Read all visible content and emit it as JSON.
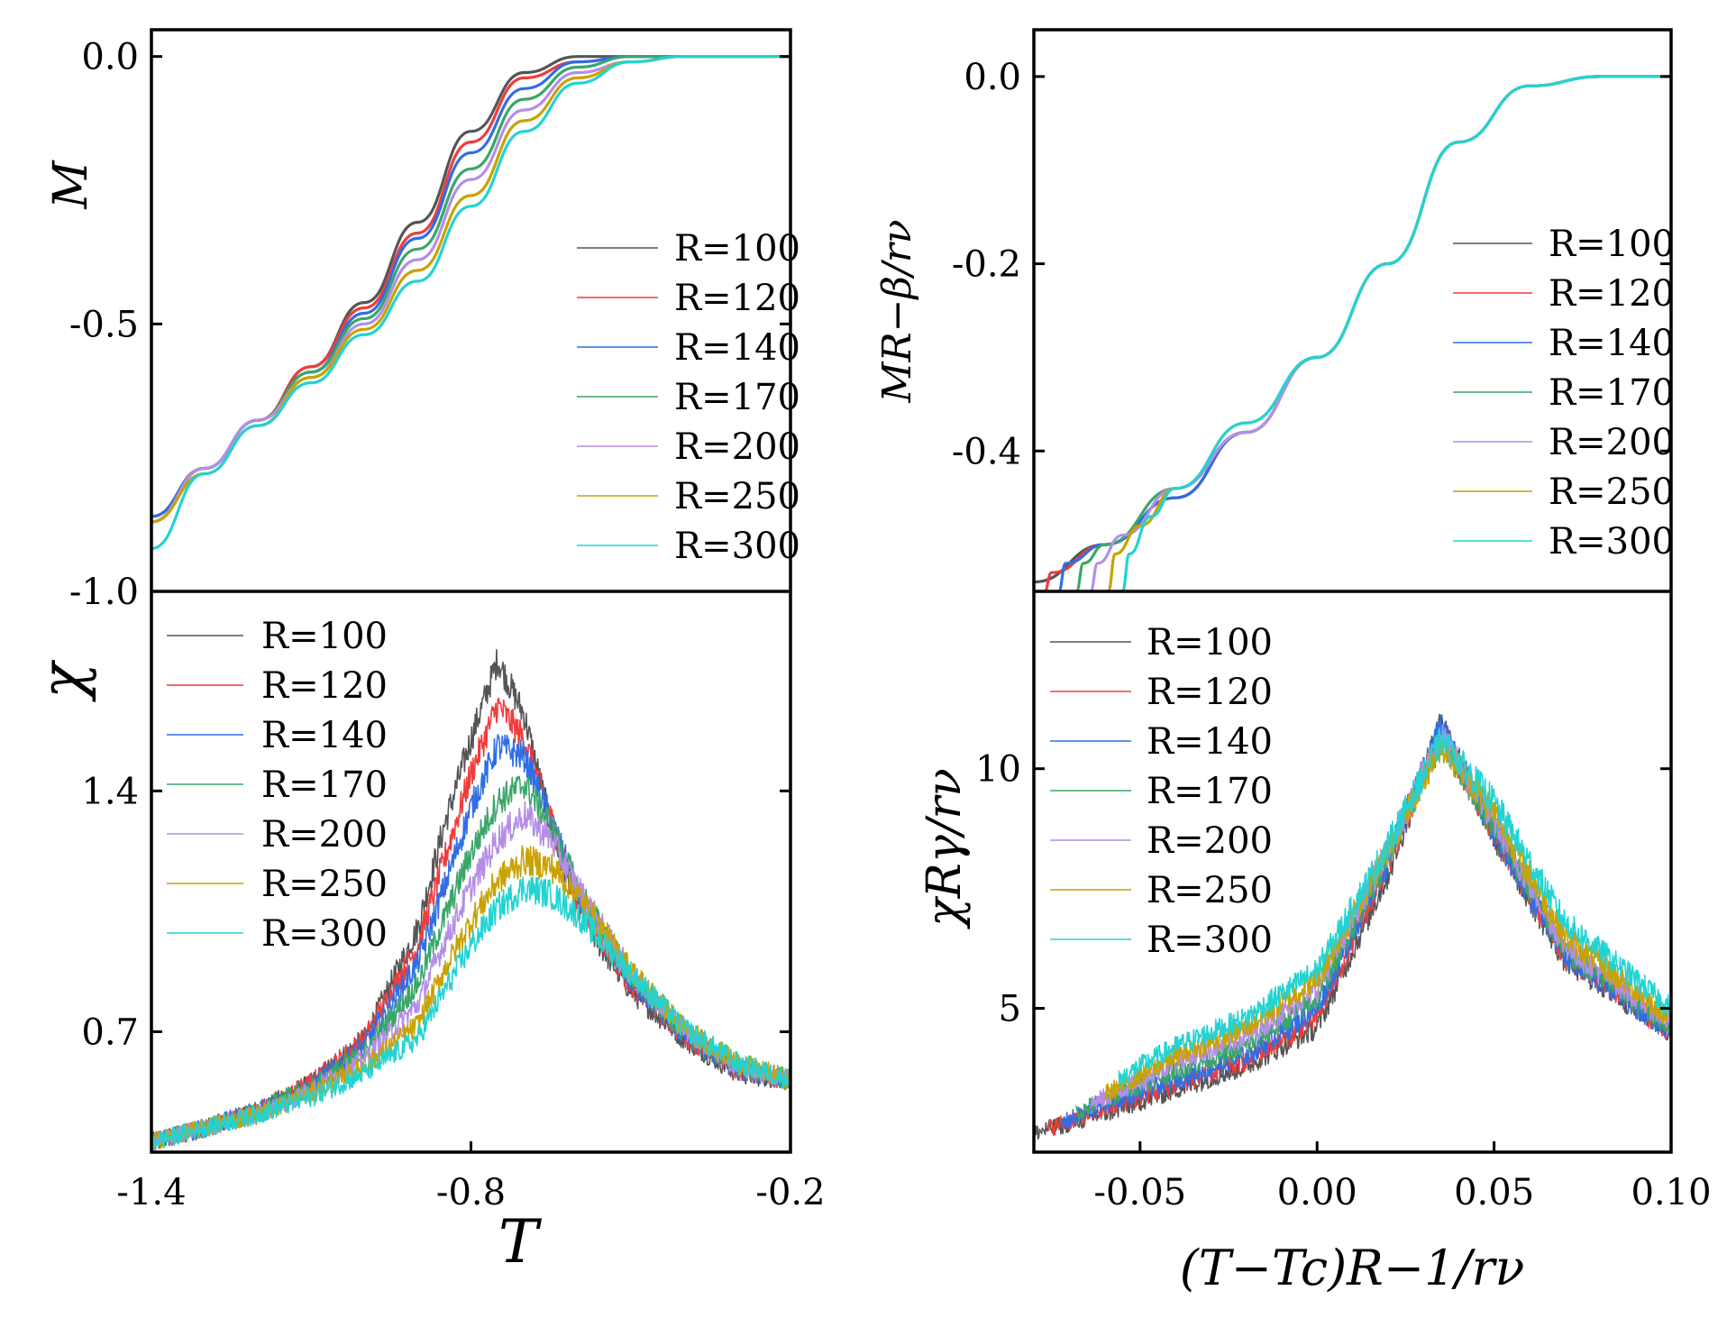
{
  "colors": {
    "R=100": "#555555",
    "R=120": "#f03c3c",
    "R=140": "#2f6ee6",
    "R=170": "#3aa66a",
    "R=200": "#b48ee6",
    "R=250": "#c9a200",
    "R=300": "#22d3d3"
  },
  "chart_data": [
    {
      "type": "line",
      "panel": "top-left",
      "ylabel": "M",
      "xlabel": "",
      "xlim": [
        -1.4,
        -0.2
      ],
      "ylim": [
        -1.0,
        0.05
      ],
      "yticks": [
        "0.0",
        "-0.5",
        "-1.0"
      ],
      "ytick_values": [
        0.0,
        -0.5,
        -1.0
      ],
      "legend_position": "right",
      "series": [
        {
          "name": "R=100",
          "x": [
            -1.4,
            -1.3,
            -1.2,
            -1.1,
            -1.0,
            -0.9,
            -0.8,
            -0.7,
            -0.6,
            -0.5,
            -0.4,
            -0.3,
            -0.2
          ],
          "y": [
            -0.86,
            -0.77,
            -0.68,
            -0.58,
            -0.46,
            -0.31,
            -0.14,
            -0.03,
            0.0,
            0.0,
            0.0,
            0.0,
            0.0
          ]
        },
        {
          "name": "R=120",
          "x": [
            -1.4,
            -1.3,
            -1.2,
            -1.1,
            -1.0,
            -0.9,
            -0.8,
            -0.7,
            -0.6,
            -0.5,
            -0.4,
            -0.3,
            -0.2
          ],
          "y": [
            -0.86,
            -0.77,
            -0.68,
            -0.58,
            -0.47,
            -0.33,
            -0.16,
            -0.04,
            -0.01,
            0.0,
            0.0,
            0.0,
            0.0
          ]
        },
        {
          "name": "R=140",
          "x": [
            -1.4,
            -1.3,
            -1.2,
            -1.1,
            -1.0,
            -0.9,
            -0.8,
            -0.7,
            -0.6,
            -0.5,
            -0.4,
            -0.3,
            -0.2
          ],
          "y": [
            -0.86,
            -0.77,
            -0.68,
            -0.59,
            -0.48,
            -0.34,
            -0.18,
            -0.06,
            -0.01,
            0.0,
            0.0,
            0.0,
            0.0
          ]
        },
        {
          "name": "R=170",
          "x": [
            -1.4,
            -1.3,
            -1.2,
            -1.1,
            -1.0,
            -0.9,
            -0.8,
            -0.7,
            -0.6,
            -0.5,
            -0.4,
            -0.3,
            -0.2
          ],
          "y": [
            -0.87,
            -0.77,
            -0.68,
            -0.59,
            -0.49,
            -0.36,
            -0.21,
            -0.08,
            -0.02,
            0.0,
            0.0,
            0.0,
            0.0
          ]
        },
        {
          "name": "R=200",
          "x": [
            -1.4,
            -1.3,
            -1.2,
            -1.1,
            -1.0,
            -0.9,
            -0.8,
            -0.7,
            -0.6,
            -0.5,
            -0.4,
            -0.3,
            -0.2
          ],
          "y": [
            -0.87,
            -0.77,
            -0.68,
            -0.6,
            -0.5,
            -0.38,
            -0.23,
            -0.1,
            -0.03,
            -0.01,
            0.0,
            0.0,
            0.0
          ]
        },
        {
          "name": "R=250",
          "x": [
            -1.4,
            -1.3,
            -1.2,
            -1.1,
            -1.0,
            -0.9,
            -0.8,
            -0.7,
            -0.6,
            -0.5,
            -0.4,
            -0.3,
            -0.2
          ],
          "y": [
            -0.87,
            -0.78,
            -0.69,
            -0.6,
            -0.51,
            -0.4,
            -0.26,
            -0.12,
            -0.04,
            -0.01,
            0.0,
            0.0,
            0.0
          ]
        },
        {
          "name": "R=300",
          "x": [
            -1.4,
            -1.3,
            -1.2,
            -1.1,
            -1.0,
            -0.9,
            -0.8,
            -0.7,
            -0.6,
            -0.5,
            -0.4,
            -0.3,
            -0.2
          ],
          "y": [
            -0.92,
            -0.78,
            -0.69,
            -0.61,
            -0.52,
            -0.42,
            -0.28,
            -0.14,
            -0.05,
            -0.01,
            0.0,
            0.0,
            0.0
          ]
        }
      ]
    },
    {
      "type": "line",
      "panel": "bottom-left",
      "ylabel": "χ",
      "xlabel": "T",
      "xlim": [
        -1.4,
        -0.2
      ],
      "xticks": [
        "-1.4",
        "-0.8",
        "-0.2"
      ],
      "xtick_values": [
        -1.4,
        -0.8,
        -0.2
      ],
      "ylim": [
        0.35,
        1.98
      ],
      "yticks": [
        "1.4",
        "0.7"
      ],
      "ytick_values": [
        1.4,
        0.7
      ],
      "legend_position": "top-left",
      "noisy": true,
      "series": [
        {
          "name": "R=100",
          "x": [
            -1.4,
            -1.3,
            -1.2,
            -1.1,
            -1.0,
            -0.9,
            -0.85,
            -0.8,
            -0.75,
            -0.7,
            -0.65,
            -0.6,
            -0.5,
            -0.4,
            -0.3,
            -0.2
          ],
          "y": [
            0.38,
            0.42,
            0.47,
            0.55,
            0.68,
            1.0,
            1.3,
            1.55,
            1.78,
            1.62,
            1.3,
            1.05,
            0.82,
            0.68,
            0.58,
            0.56
          ]
        },
        {
          "name": "R=120",
          "x": [
            -1.4,
            -1.3,
            -1.2,
            -1.1,
            -1.0,
            -0.9,
            -0.85,
            -0.8,
            -0.75,
            -0.7,
            -0.65,
            -0.6,
            -0.5,
            -0.4,
            -0.3,
            -0.2
          ],
          "y": [
            0.38,
            0.42,
            0.47,
            0.55,
            0.68,
            0.95,
            1.2,
            1.45,
            1.65,
            1.55,
            1.32,
            1.08,
            0.84,
            0.69,
            0.59,
            0.56
          ]
        },
        {
          "name": "R=140",
          "x": [
            -1.4,
            -1.3,
            -1.2,
            -1.1,
            -1.0,
            -0.9,
            -0.85,
            -0.8,
            -0.75,
            -0.7,
            -0.65,
            -0.6,
            -0.5,
            -0.4,
            -0.3,
            -0.2
          ],
          "y": [
            0.38,
            0.42,
            0.47,
            0.54,
            0.66,
            0.9,
            1.12,
            1.35,
            1.53,
            1.5,
            1.32,
            1.1,
            0.85,
            0.69,
            0.59,
            0.56
          ]
        },
        {
          "name": "R=170",
          "x": [
            -1.4,
            -1.3,
            -1.2,
            -1.1,
            -1.0,
            -0.9,
            -0.85,
            -0.8,
            -0.75,
            -0.7,
            -0.65,
            -0.6,
            -0.5,
            -0.4,
            -0.3,
            -0.2
          ],
          "y": [
            0.38,
            0.42,
            0.47,
            0.54,
            0.64,
            0.84,
            1.03,
            1.22,
            1.37,
            1.42,
            1.3,
            1.12,
            0.86,
            0.7,
            0.6,
            0.56
          ]
        },
        {
          "name": "R=200",
          "x": [
            -1.4,
            -1.3,
            -1.2,
            -1.1,
            -1.0,
            -0.9,
            -0.85,
            -0.8,
            -0.75,
            -0.7,
            -0.65,
            -0.6,
            -0.5,
            -0.4,
            -0.3,
            -0.2
          ],
          "y": [
            0.38,
            0.42,
            0.46,
            0.53,
            0.62,
            0.78,
            0.96,
            1.12,
            1.26,
            1.33,
            1.26,
            1.12,
            0.87,
            0.71,
            0.6,
            0.56
          ]
        },
        {
          "name": "R=250",
          "x": [
            -1.4,
            -1.3,
            -1.2,
            -1.1,
            -1.0,
            -0.9,
            -0.85,
            -0.8,
            -0.75,
            -0.7,
            -0.65,
            -0.6,
            -0.5,
            -0.4,
            -0.3,
            -0.2
          ],
          "y": [
            0.38,
            0.42,
            0.46,
            0.52,
            0.6,
            0.72,
            0.88,
            1.02,
            1.14,
            1.2,
            1.18,
            1.1,
            0.88,
            0.71,
            0.61,
            0.56
          ]
        },
        {
          "name": "R=300",
          "x": [
            -1.4,
            -1.3,
            -1.2,
            -1.1,
            -1.0,
            -0.9,
            -0.85,
            -0.8,
            -0.75,
            -0.7,
            -0.65,
            -0.6,
            -0.5,
            -0.4,
            -0.3,
            -0.2
          ],
          "y": [
            0.38,
            0.42,
            0.46,
            0.51,
            0.58,
            0.68,
            0.82,
            0.95,
            1.06,
            1.12,
            1.1,
            1.04,
            0.87,
            0.71,
            0.61,
            0.56
          ]
        }
      ]
    },
    {
      "type": "line",
      "panel": "top-right",
      "ylabel": "MR−β/rν",
      "xlabel": "",
      "xlim": [
        -0.08,
        0.1
      ],
      "ylim": [
        -0.55,
        0.05
      ],
      "yticks": [
        "0.0",
        "-0.2",
        "-0.4"
      ],
      "ytick_values": [
        0.0,
        -0.2,
        -0.4
      ],
      "legend_position": "right",
      "series": [
        {
          "name": "R=100",
          "x": [
            -0.08,
            -0.06,
            -0.04,
            -0.02,
            0.0,
            0.02,
            0.04,
            0.06,
            0.08,
            0.1
          ],
          "y": [
            -0.54,
            -0.5,
            -0.45,
            -0.38,
            -0.3,
            -0.2,
            -0.07,
            -0.01,
            0.0,
            0.0
          ]
        },
        {
          "name": "R=120",
          "x": [
            -0.077,
            -0.075,
            -0.06,
            -0.04,
            -0.02,
            0.0,
            0.02,
            0.04,
            0.06,
            0.08,
            0.1
          ],
          "y": [
            -0.55,
            -0.53,
            -0.5,
            -0.45,
            -0.38,
            -0.3,
            -0.2,
            -0.07,
            -0.01,
            0.0,
            0.0
          ]
        },
        {
          "name": "R=140",
          "x": [
            -0.073,
            -0.071,
            -0.06,
            -0.04,
            -0.02,
            0.0,
            0.02,
            0.04,
            0.06,
            0.08,
            0.1
          ],
          "y": [
            -0.55,
            -0.52,
            -0.5,
            -0.45,
            -0.38,
            -0.3,
            -0.2,
            -0.07,
            -0.01,
            0.0,
            0.0
          ]
        },
        {
          "name": "R=170",
          "x": [
            -0.068,
            -0.066,
            -0.06,
            -0.04,
            -0.02,
            0.0,
            0.02,
            0.04,
            0.06,
            0.08,
            0.1
          ],
          "y": [
            -0.55,
            -0.52,
            -0.5,
            -0.44,
            -0.38,
            -0.3,
            -0.2,
            -0.07,
            -0.01,
            0.0,
            0.0
          ]
        },
        {
          "name": "R=200",
          "x": [
            -0.064,
            -0.062,
            -0.055,
            -0.04,
            -0.02,
            0.0,
            0.02,
            0.04,
            0.06,
            0.08,
            0.1
          ],
          "y": [
            -0.55,
            -0.52,
            -0.49,
            -0.44,
            -0.38,
            -0.3,
            -0.2,
            -0.07,
            -0.01,
            0.0,
            0.0
          ]
        },
        {
          "name": "R=250",
          "x": [
            -0.059,
            -0.057,
            -0.05,
            -0.04,
            -0.02,
            0.0,
            0.02,
            0.04,
            0.06,
            0.08,
            0.1
          ],
          "y": [
            -0.55,
            -0.51,
            -0.48,
            -0.44,
            -0.37,
            -0.3,
            -0.2,
            -0.07,
            -0.01,
            0.0,
            0.0
          ]
        },
        {
          "name": "R=300",
          "x": [
            -0.055,
            -0.053,
            -0.047,
            -0.04,
            -0.02,
            0.0,
            0.02,
            0.04,
            0.06,
            0.08,
            0.1
          ],
          "y": [
            -0.55,
            -0.51,
            -0.47,
            -0.44,
            -0.37,
            -0.3,
            -0.2,
            -0.07,
            -0.01,
            0.0,
            0.0
          ]
        }
      ]
    },
    {
      "type": "line",
      "panel": "bottom-right",
      "ylabel": "χRγ/rν",
      "xlabel": "(T−Tc)R−1/rν",
      "xlim": [
        -0.08,
        0.1
      ],
      "xticks": [
        "-0.05",
        "0.00",
        "0.05",
        "0.10"
      ],
      "xtick_values": [
        -0.05,
        0.0,
        0.05,
        0.1
      ],
      "ylim": [
        2.0,
        13.7
      ],
      "yticks": [
        "10",
        "5"
      ],
      "ytick_values": [
        10,
        5
      ],
      "legend_position": "top-left",
      "noisy": true,
      "series": [
        {
          "name": "R=100",
          "x": [
            -0.08,
            -0.06,
            -0.04,
            -0.02,
            0.0,
            0.02,
            0.035,
            0.05,
            0.07,
            0.1
          ],
          "y": [
            2.4,
            2.8,
            3.3,
            3.8,
            4.6,
            7.8,
            11.0,
            8.6,
            6.0,
            4.5
          ]
        },
        {
          "name": "R=120",
          "x": [
            -0.076,
            -0.06,
            -0.04,
            -0.02,
            0.0,
            0.02,
            0.035,
            0.05,
            0.07,
            0.1
          ],
          "y": [
            2.5,
            2.9,
            3.4,
            3.9,
            4.8,
            8.0,
            10.8,
            8.7,
            6.1,
            4.5
          ]
        },
        {
          "name": "R=140",
          "x": [
            -0.072,
            -0.06,
            -0.04,
            -0.02,
            0.0,
            0.02,
            0.035,
            0.05,
            0.07,
            0.1
          ],
          "y": [
            2.6,
            3.0,
            3.5,
            4.0,
            5.0,
            8.1,
            10.9,
            8.7,
            6.1,
            4.5
          ]
        },
        {
          "name": "R=170",
          "x": [
            -0.068,
            -0.06,
            -0.04,
            -0.02,
            0.0,
            0.02,
            0.035,
            0.05,
            0.07,
            0.1
          ],
          "y": [
            2.8,
            3.1,
            3.7,
            4.2,
            5.2,
            8.2,
            10.6,
            8.8,
            6.2,
            4.6
          ]
        },
        {
          "name": "R=200",
          "x": [
            -0.064,
            -0.055,
            -0.04,
            -0.02,
            0.0,
            0.02,
            0.035,
            0.05,
            0.07,
            0.1
          ],
          "y": [
            3.0,
            3.3,
            3.9,
            4.4,
            5.4,
            8.3,
            10.7,
            8.9,
            6.3,
            4.7
          ]
        },
        {
          "name": "R=250",
          "x": [
            -0.06,
            -0.05,
            -0.04,
            -0.02,
            0.0,
            0.02,
            0.035,
            0.05,
            0.07,
            0.1
          ],
          "y": [
            3.2,
            3.6,
            4.0,
            4.6,
            5.6,
            8.3,
            10.5,
            9.1,
            6.5,
            4.8
          ]
        },
        {
          "name": "R=300",
          "x": [
            -0.056,
            -0.05,
            -0.04,
            -0.02,
            0.0,
            0.02,
            0.035,
            0.05,
            0.07,
            0.1
          ],
          "y": [
            3.5,
            3.8,
            4.2,
            4.8,
            5.8,
            8.4,
            10.6,
            9.3,
            6.8,
            5.0
          ]
        }
      ]
    }
  ]
}
